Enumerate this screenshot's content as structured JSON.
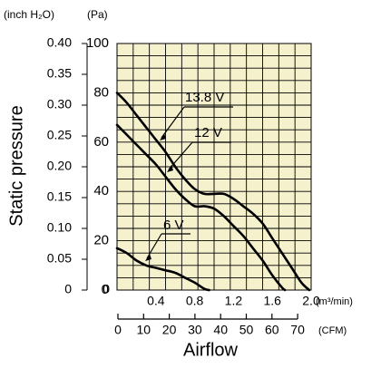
{
  "chart_data": {
    "type": "line",
    "ylabel": "Static pressure",
    "xlabel": "Airflow",
    "y_units": {
      "inch": "(inch H₂O)",
      "pa": "(Pa)"
    },
    "x_units": {
      "m3": "(m³/min)",
      "cfm": "(CFM)"
    },
    "y_pa_range": [
      0,
      100
    ],
    "y_pa_ticks": [
      "0",
      "20",
      "40",
      "60",
      "80",
      "100"
    ],
    "y_inch_ticks": [
      "0",
      "0.05",
      "0.10",
      "0.15",
      "0.20",
      "0.25",
      "0.30",
      "0.35",
      "0.40"
    ],
    "x_m3_range": [
      0,
      2.0
    ],
    "x_m3_ticks": [
      "0.4",
      "0.8",
      "1.2",
      "1.6",
      "2.0"
    ],
    "x_cfm_ticks": [
      "0",
      "10",
      "20",
      "30",
      "40",
      "50",
      "60",
      "70"
    ],
    "grid": true,
    "plot_background": "#f5f1cc",
    "series": [
      {
        "name": "13.8 V",
        "x": [
          0,
          0.1,
          0.2,
          0.3,
          0.4,
          0.5,
          0.6,
          0.7,
          0.8,
          0.9,
          1.0,
          1.1,
          1.2,
          1.3,
          1.4,
          1.5,
          1.6,
          1.7,
          1.8,
          1.9,
          1.98
        ],
        "y": [
          80,
          76,
          71,
          66,
          61,
          56,
          50,
          45,
          41,
          39,
          39,
          39,
          37,
          34,
          31,
          27,
          21,
          15,
          9,
          3,
          0
        ]
      },
      {
        "name": "12 V",
        "x": [
          0,
          0.1,
          0.2,
          0.3,
          0.4,
          0.5,
          0.6,
          0.7,
          0.8,
          0.9,
          1.0,
          1.1,
          1.2,
          1.3,
          1.4,
          1.5,
          1.6,
          1.7,
          1.73
        ],
        "y": [
          67,
          63,
          59,
          55,
          51,
          46,
          41,
          37,
          34,
          34,
          33,
          30,
          26,
          22,
          17,
          12,
          6,
          1,
          0
        ]
      },
      {
        "name": "6 V",
        "x": [
          0,
          0.1,
          0.2,
          0.3,
          0.4,
          0.5,
          0.6,
          0.7,
          0.8,
          0.9,
          0.95
        ],
        "y": [
          17,
          15,
          12,
          10,
          9,
          8,
          7,
          5,
          3,
          0.5,
          0
        ]
      }
    ]
  }
}
